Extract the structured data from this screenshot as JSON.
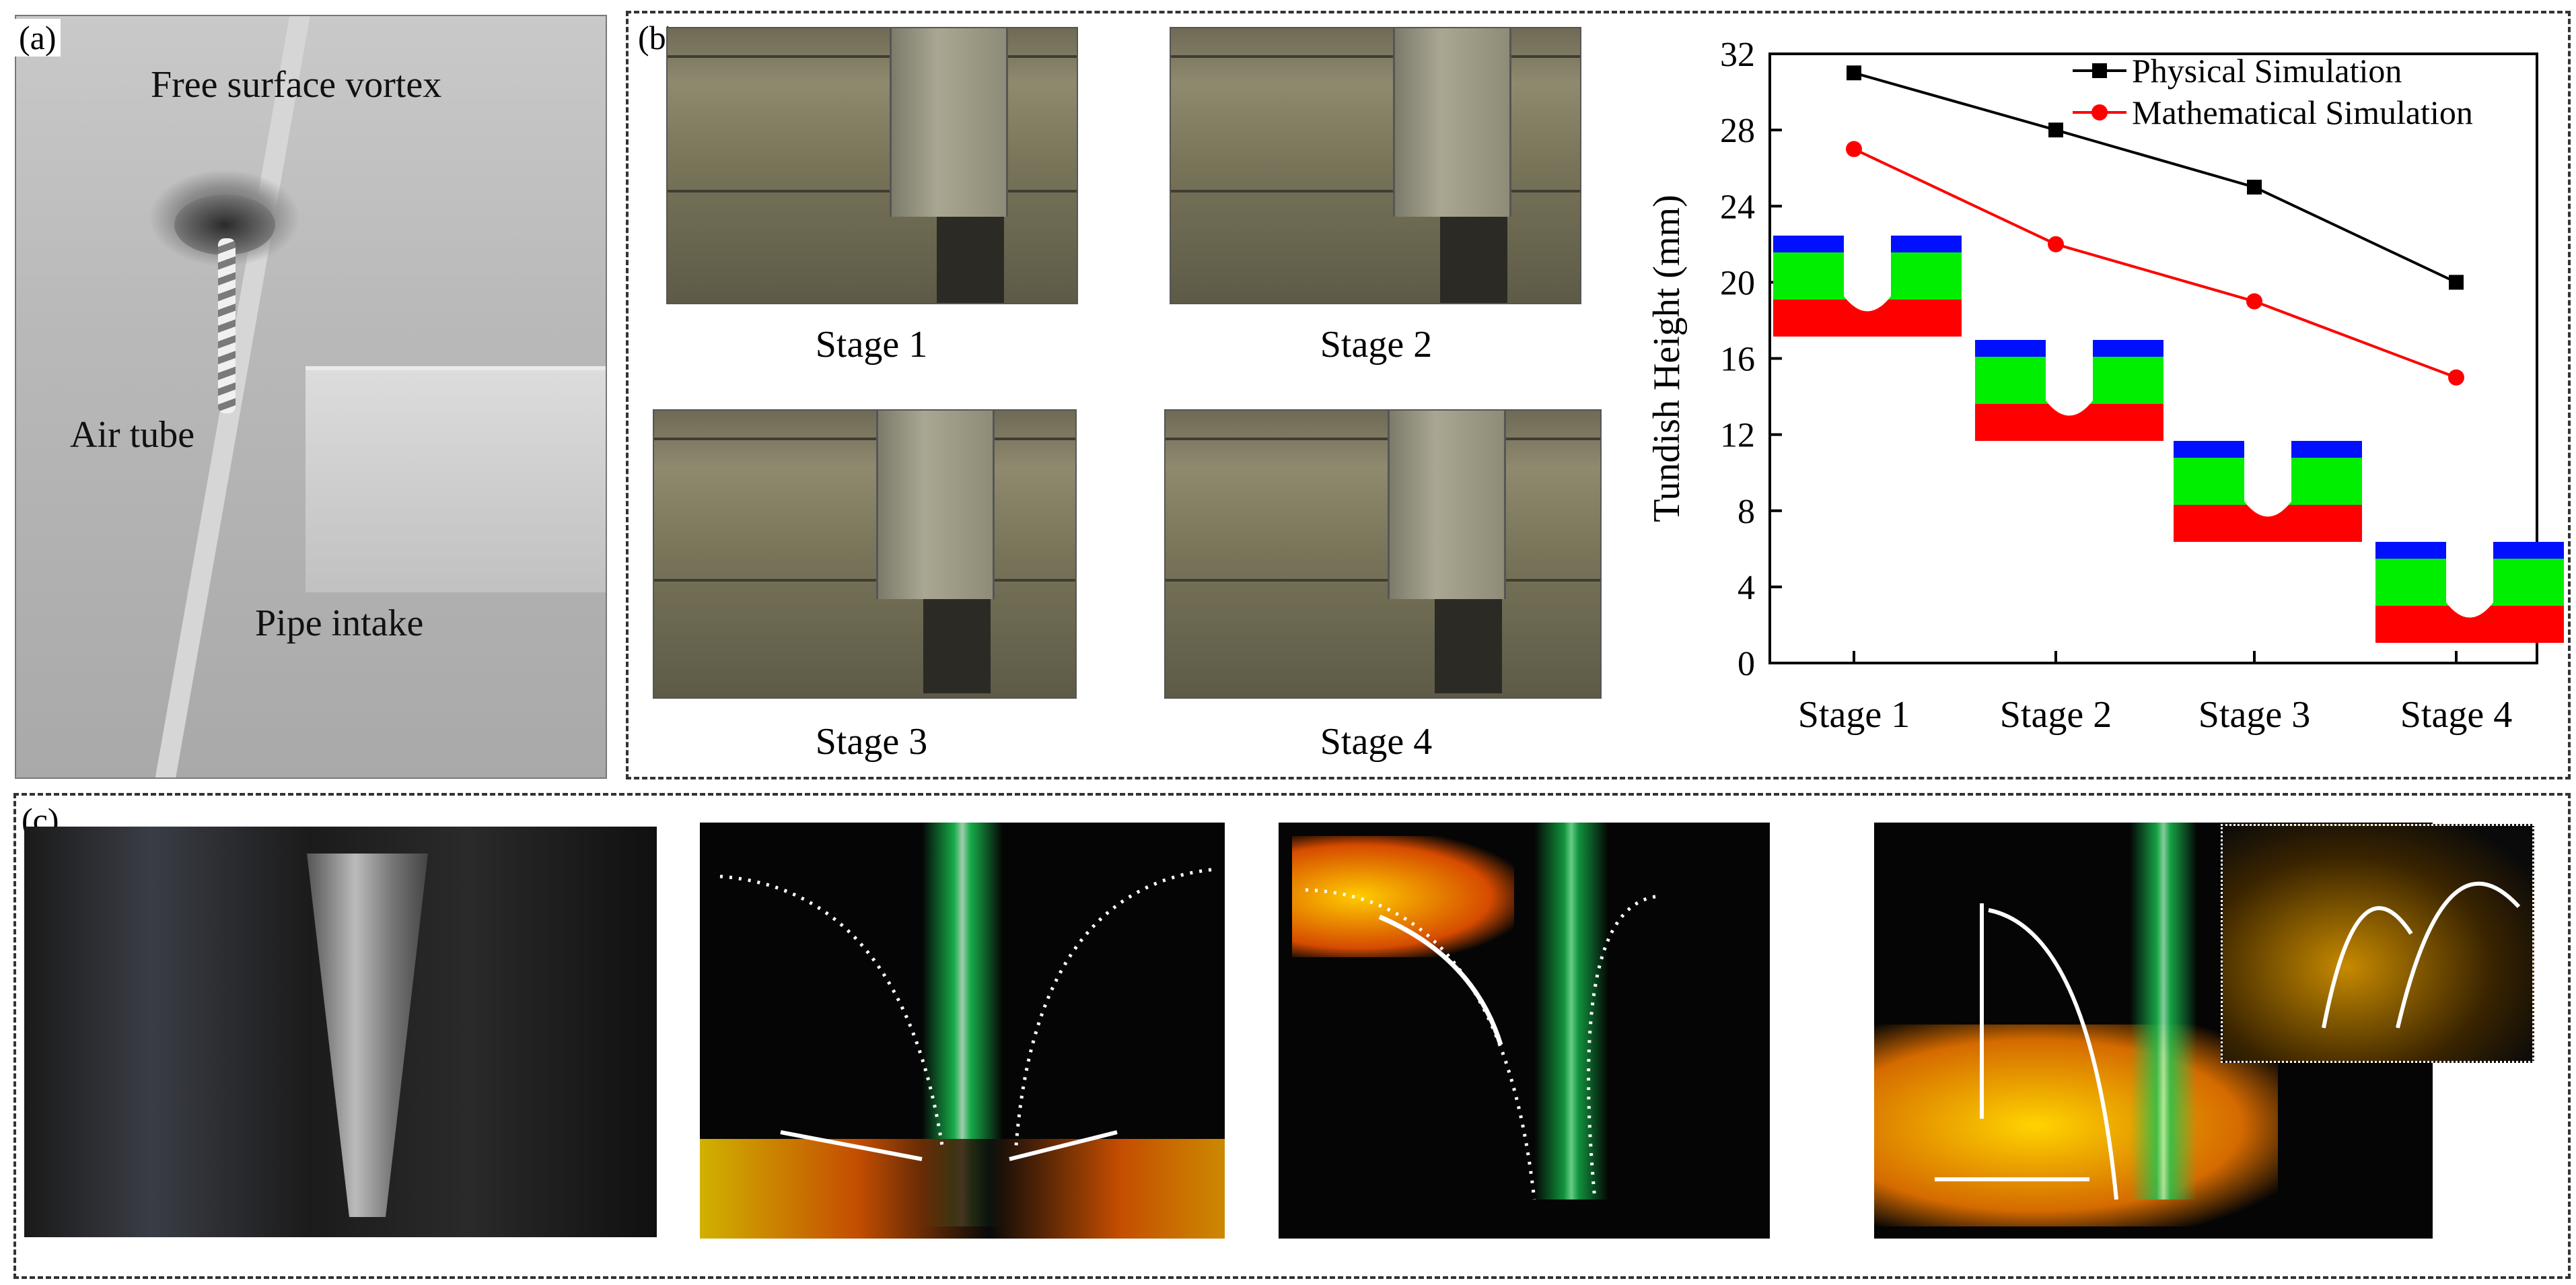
{
  "panels": {
    "a": {
      "tag": "(a)",
      "labels": {
        "vortex": "Free surface vortex",
        "air_tube": "Air tube",
        "pipe_intake": "Pipe intake"
      }
    },
    "b": {
      "tag": "(b)",
      "stage_captions": [
        "Stage 1",
        "Stage 2",
        "Stage 3",
        "Stage 4"
      ]
    },
    "c": {
      "tag": "(c)"
    }
  },
  "chart_data": {
    "type": "line",
    "categories": [
      "Stage 1",
      "Stage 2",
      "Stage 3",
      "Stage 4"
    ],
    "ylabel": "Tundish Height (mm)",
    "xlabel": "",
    "ylim": [
      0,
      32
    ],
    "yticks": [
      0,
      4,
      8,
      12,
      16,
      20,
      24,
      28,
      32
    ],
    "legend_position": "top-right",
    "series": [
      {
        "name": "Physical Simulation",
        "values": [
          31,
          28,
          25,
          20
        ],
        "color": "#000000",
        "marker": "square"
      },
      {
        "name": "Mathematical Simulation",
        "values": [
          27,
          22,
          19,
          15
        ],
        "color": "#ff0000",
        "marker": "circle"
      }
    ],
    "inset_colors": {
      "top": "#0010ff",
      "middle": "#00ee00",
      "bottom": "#ff0000"
    }
  }
}
